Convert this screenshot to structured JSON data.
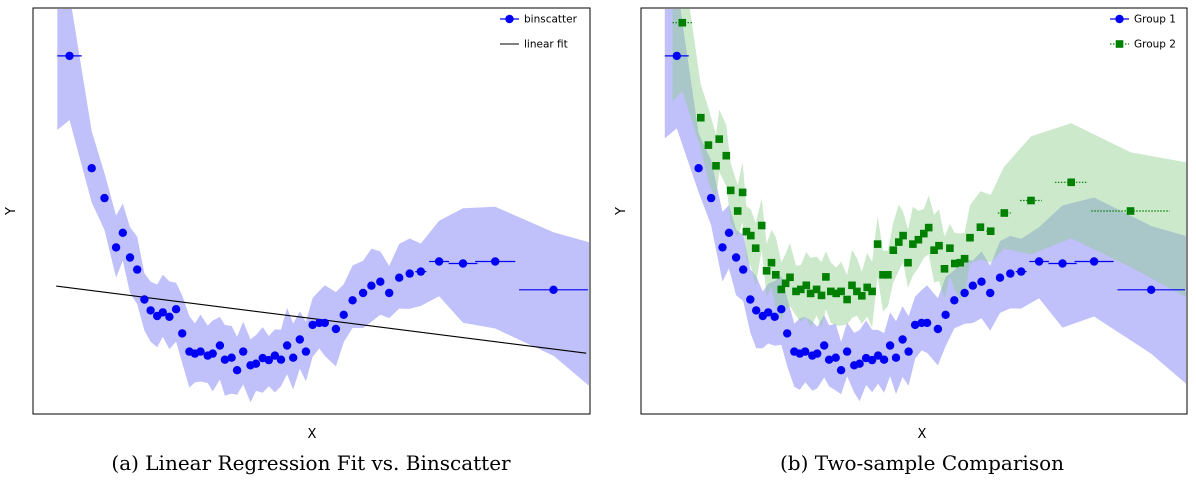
{
  "colors": {
    "blue": "#0000f5",
    "blue_band": "#7474f4",
    "green": "#008000",
    "green_band": "#8fcf8f",
    "black": "#000000"
  },
  "chart_data": [
    {
      "id": "a",
      "type": "scatter",
      "caption": "(a) Linear Regression Fit vs. Binscatter",
      "xlabel": "X",
      "ylabel": "Y",
      "xlim": [
        0,
        1
      ],
      "ylim": [
        0,
        1
      ],
      "ticks_shown": false,
      "grid": false,
      "legend_position": "top-right",
      "legend": [
        {
          "label": "binscatter",
          "marker": "circle",
          "color": "#0000f5",
          "linestyle": "solid"
        },
        {
          "label": "linear fit",
          "marker": "none",
          "color": "#000000",
          "linestyle": "solid"
        }
      ],
      "linear_fit": {
        "x": [
          0.04,
          0.995
        ],
        "y": [
          0.314,
          0.148
        ]
      },
      "series": [
        {
          "name": "binscatter",
          "color": "#0000f5",
          "band_color": "#7474f4",
          "errorbar_style": "solid",
          "x": [
            0.064,
            0.104,
            0.127,
            0.148,
            0.16,
            0.173,
            0.186,
            0.199,
            0.21,
            0.222,
            0.232,
            0.244,
            0.256,
            0.267,
            0.28,
            0.29,
            0.3,
            0.313,
            0.322,
            0.335,
            0.344,
            0.356,
            0.366,
            0.377,
            0.39,
            0.4,
            0.412,
            0.423,
            0.434,
            0.445,
            0.456,
            0.467,
            0.479,
            0.49,
            0.502,
            0.514,
            0.524,
            0.544,
            0.558,
            0.574,
            0.593,
            0.608,
            0.624,
            0.64,
            0.658,
            0.677,
            0.697,
            0.73,
            0.773,
            0.831,
            0.936
          ],
          "y": [
            0.884,
            0.606,
            0.532,
            0.41,
            0.446,
            0.385,
            0.355,
            0.281,
            0.254,
            0.24,
            0.249,
            0.238,
            0.257,
            0.197,
            0.152,
            0.147,
            0.152,
            0.142,
            0.147,
            0.167,
            0.132,
            0.137,
            0.106,
            0.152,
            0.118,
            0.122,
            0.136,
            0.131,
            0.142,
            0.132,
            0.167,
            0.137,
            0.182,
            0.152,
            0.218,
            0.223,
            0.223,
            0.208,
            0.243,
            0.279,
            0.297,
            0.315,
            0.325,
            0.297,
            0.335,
            0.345,
            0.35,
            0.375,
            0.37,
            0.375,
            0.305
          ],
          "err_x": [
            0.022,
            0.004,
            0.004,
            0.004,
            0.004,
            0.004,
            0.004,
            0.004,
            0.004,
            0.004,
            0.004,
            0.004,
            0.004,
            0.004,
            0.004,
            0.004,
            0.004,
            0.004,
            0.004,
            0.004,
            0.004,
            0.004,
            0.004,
            0.004,
            0.004,
            0.004,
            0.004,
            0.004,
            0.004,
            0.004,
            0.004,
            0.004,
            0.004,
            0.004,
            0.004,
            0.004,
            0.004,
            0.004,
            0.004,
            0.004,
            0.004,
            0.004,
            0.004,
            0.004,
            0.004,
            0.006,
            0.01,
            0.018,
            0.026,
            0.036,
            0.062
          ]
        }
      ]
    },
    {
      "id": "b",
      "type": "scatter",
      "caption": "(b) Two-sample Comparison",
      "xlabel": "X",
      "ylabel": "Y",
      "xlim": [
        0,
        1
      ],
      "ylim": [
        0,
        1
      ],
      "ticks_shown": false,
      "grid": false,
      "legend_position": "top-right",
      "legend": [
        {
          "label": "Group 1",
          "marker": "circle",
          "color": "#0000f5",
          "linestyle": "solid"
        },
        {
          "label": "Group 2",
          "marker": "square",
          "color": "#008000",
          "linestyle": "dotted"
        }
      ],
      "series": [
        {
          "name": "Group 1",
          "marker": "circle",
          "color": "#0000f5",
          "band_color": "#7474f4",
          "errorbar_style": "solid",
          "x": [
            0.064,
            0.104,
            0.127,
            0.148,
            0.16,
            0.173,
            0.186,
            0.199,
            0.21,
            0.222,
            0.232,
            0.244,
            0.256,
            0.267,
            0.28,
            0.29,
            0.3,
            0.313,
            0.322,
            0.335,
            0.344,
            0.356,
            0.366,
            0.377,
            0.39,
            0.4,
            0.412,
            0.423,
            0.434,
            0.445,
            0.456,
            0.467,
            0.479,
            0.49,
            0.502,
            0.514,
            0.524,
            0.544,
            0.558,
            0.574,
            0.593,
            0.608,
            0.624,
            0.64,
            0.658,
            0.677,
            0.697,
            0.73,
            0.773,
            0.831,
            0.936
          ],
          "y": [
            0.884,
            0.606,
            0.532,
            0.41,
            0.446,
            0.385,
            0.355,
            0.281,
            0.254,
            0.24,
            0.249,
            0.238,
            0.257,
            0.197,
            0.152,
            0.147,
            0.152,
            0.142,
            0.147,
            0.167,
            0.132,
            0.137,
            0.106,
            0.152,
            0.118,
            0.122,
            0.136,
            0.131,
            0.142,
            0.132,
            0.167,
            0.137,
            0.182,
            0.152,
            0.218,
            0.223,
            0.223,
            0.208,
            0.243,
            0.279,
            0.297,
            0.315,
            0.325,
            0.297,
            0.335,
            0.345,
            0.35,
            0.375,
            0.37,
            0.375,
            0.305
          ],
          "err_x": [
            0.022,
            0.004,
            0.004,
            0.004,
            0.004,
            0.004,
            0.004,
            0.004,
            0.004,
            0.004,
            0.004,
            0.004,
            0.004,
            0.004,
            0.004,
            0.004,
            0.004,
            0.004,
            0.004,
            0.004,
            0.004,
            0.004,
            0.004,
            0.004,
            0.004,
            0.004,
            0.004,
            0.004,
            0.004,
            0.004,
            0.004,
            0.004,
            0.004,
            0.004,
            0.004,
            0.004,
            0.004,
            0.004,
            0.004,
            0.004,
            0.004,
            0.004,
            0.004,
            0.004,
            0.004,
            0.006,
            0.01,
            0.018,
            0.026,
            0.036,
            0.062
          ]
        },
        {
          "name": "Group 2",
          "marker": "square",
          "color": "#008000",
          "band_color": "#8fcf8f",
          "errorbar_style": "dotted",
          "x": [
            0.074,
            0.108,
            0.122,
            0.136,
            0.142,
            0.155,
            0.163,
            0.176,
            0.185,
            0.192,
            0.2,
            0.209,
            0.22,
            0.229,
            0.238,
            0.246,
            0.256,
            0.264,
            0.272,
            0.283,
            0.292,
            0.302,
            0.31,
            0.321,
            0.33,
            0.338,
            0.347,
            0.357,
            0.366,
            0.377,
            0.386,
            0.395,
            0.404,
            0.414,
            0.423,
            0.433,
            0.443,
            0.452,
            0.462,
            0.472,
            0.48,
            0.489,
            0.498,
            0.508,
            0.518,
            0.527,
            0.537,
            0.546,
            0.556,
            0.566,
            0.575,
            0.585,
            0.593,
            0.603,
            0.622,
            0.641,
            0.666,
            0.715,
            0.789,
            0.898
          ],
          "y": [
            0.966,
            0.731,
            0.663,
            0.612,
            0.678,
            0.637,
            0.551,
            0.5,
            0.546,
            0.449,
            0.439,
            0.408,
            0.464,
            0.352,
            0.372,
            0.342,
            0.306,
            0.321,
            0.336,
            0.301,
            0.306,
            0.316,
            0.296,
            0.306,
            0.291,
            0.337,
            0.301,
            0.296,
            0.301,
            0.281,
            0.316,
            0.301,
            0.29,
            0.311,
            0.301,
            0.418,
            0.342,
            0.342,
            0.403,
            0.423,
            0.439,
            0.372,
            0.418,
            0.429,
            0.444,
            0.459,
            0.403,
            0.414,
            0.357,
            0.408,
            0.37,
            0.372,
            0.382,
            0.434,
            0.46,
            0.45,
            0.495,
            0.526,
            0.571,
            0.5
          ],
          "err_x": [
            0.018,
            0.004,
            0.004,
            0.004,
            0.004,
            0.004,
            0.004,
            0.004,
            0.004,
            0.004,
            0.004,
            0.004,
            0.004,
            0.004,
            0.004,
            0.004,
            0.004,
            0.004,
            0.004,
            0.004,
            0.004,
            0.004,
            0.004,
            0.004,
            0.004,
            0.004,
            0.004,
            0.004,
            0.004,
            0.004,
            0.004,
            0.004,
            0.004,
            0.004,
            0.004,
            0.004,
            0.004,
            0.004,
            0.004,
            0.004,
            0.004,
            0.004,
            0.004,
            0.004,
            0.004,
            0.004,
            0.004,
            0.004,
            0.004,
            0.004,
            0.004,
            0.004,
            0.004,
            0.004,
            0.006,
            0.008,
            0.012,
            0.02,
            0.03,
            0.072
          ]
        }
      ]
    }
  ]
}
